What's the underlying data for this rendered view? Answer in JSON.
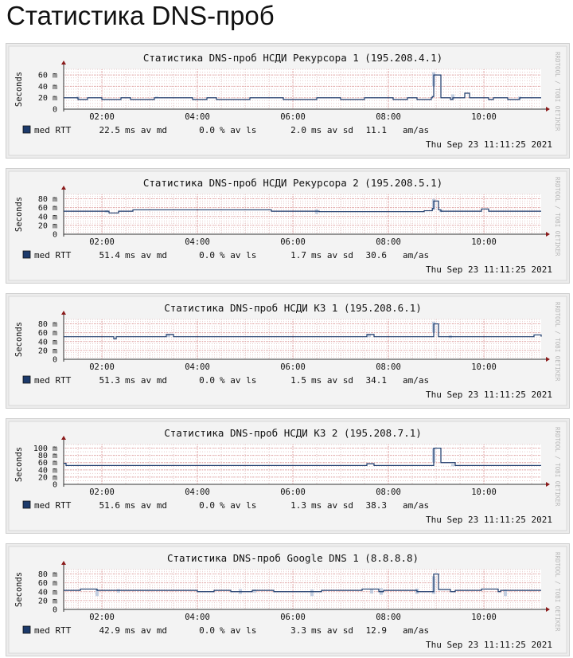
{
  "page": {
    "title": "Статистика DNS-проб"
  },
  "watermark": "RRDTOOL / TOBI OETIKER",
  "chart_data": [
    {
      "type": "line",
      "title": "Статистика DNS-проб НСДИ Рекурсора 1 (195.208.4.1)",
      "ylabel": "Seconds",
      "yticks": [
        "0",
        "20 m",
        "40 m",
        "60 m"
      ],
      "ytick_values": [
        0,
        20,
        40,
        60
      ],
      "ylim": [
        0,
        70
      ],
      "xticks": [
        "02:00",
        "04:00",
        "06:00",
        "08:00",
        "10:00"
      ],
      "xtick_hours": [
        2,
        4,
        6,
        8,
        10
      ],
      "xlim": [
        1.2,
        11.2
      ],
      "grid": true,
      "series": [
        {
          "name": "med RTT",
          "color": "#1c3a6b",
          "x": [
            1.2,
            1.45,
            1.5,
            1.65,
            1.7,
            1.95,
            2.0,
            2.35,
            2.4,
            2.55,
            2.6,
            3.0,
            3.1,
            3.8,
            3.9,
            4.1,
            4.2,
            4.35,
            4.4,
            5.0,
            5.1,
            5.7,
            5.8,
            6.4,
            6.5,
            6.9,
            7.0,
            7.4,
            7.5,
            8.0,
            8.1,
            8.3,
            8.4,
            8.55,
            8.6,
            8.85,
            8.9,
            8.92,
            8.95,
            9.0,
            9.1,
            9.15,
            9.3,
            9.35,
            9.55,
            9.6,
            9.7,
            9.8,
            10.1,
            10.2,
            10.4,
            10.5,
            10.7,
            10.75,
            11.2
          ],
          "values": [
            20,
            20,
            17,
            17,
            20,
            20,
            17,
            17,
            20,
            20,
            17,
            17,
            20,
            20,
            17,
            17,
            20,
            20,
            17,
            17,
            20,
            20,
            17,
            17,
            20,
            20,
            17,
            17,
            20,
            20,
            17,
            17,
            20,
            20,
            17,
            17,
            20,
            22,
            60,
            60,
            20,
            20,
            17,
            20,
            20,
            28,
            20,
            20,
            17,
            20,
            20,
            17,
            17,
            20,
            20
          ]
        }
      ],
      "shading": [
        {
          "x": 1.5,
          "y0": 18,
          "y1": 22
        },
        {
          "x": 3.15,
          "y0": 19,
          "y1": 22
        },
        {
          "x": 8.95,
          "y0": 40,
          "y1": 65
        },
        {
          "x": 9.35,
          "y0": 17,
          "y1": 26
        },
        {
          "x": 10.75,
          "y0": 18,
          "y1": 22
        }
      ],
      "legend": {
        "label": "med RTT",
        "ms_av_md": "22.5",
        "ms_av_md_label": "ms av md",
        "pct_av_ls": "0.0",
        "pct_av_ls_label": "% av ls",
        "ms_av_sd": "2.0",
        "ms_av_sd_label": "ms av sd",
        "am_as": "11.1",
        "am_as_label": "am/as"
      },
      "timestamp": "Thu Sep 23 11:11:25 2021"
    },
    {
      "type": "line",
      "title": "Статистика DNS-проб НСДИ Рекурсора 2 (195.208.5.1)",
      "ylabel": "Seconds",
      "yticks": [
        "0",
        "20 m",
        "40 m",
        "60 m",
        "80 m"
      ],
      "ytick_values": [
        0,
        20,
        40,
        60,
        80
      ],
      "ylim": [
        0,
        90
      ],
      "xticks": [
        "02:00",
        "04:00",
        "06:00",
        "08:00",
        "10:00"
      ],
      "xtick_hours": [
        2,
        4,
        6,
        8,
        10
      ],
      "xlim": [
        1.2,
        11.2
      ],
      "grid": true,
      "series": [
        {
          "name": "med RTT",
          "color": "#1c3a6b",
          "x": [
            1.2,
            2.1,
            2.15,
            2.3,
            2.35,
            2.6,
            2.65,
            5.5,
            5.55,
            6.5,
            6.55,
            8.7,
            8.75,
            8.9,
            8.92,
            8.95,
            9.0,
            9.05,
            9.1,
            9.9,
            9.95,
            10.05,
            10.1,
            11.2
          ],
          "values": [
            52,
            52,
            48,
            48,
            52,
            52,
            55,
            55,
            52,
            52,
            51,
            51,
            53,
            53,
            58,
            75,
            75,
            55,
            52,
            52,
            57,
            57,
            52,
            52
          ]
        }
      ],
      "shading": [
        {
          "x": 2.1,
          "y0": 49,
          "y1": 54
        },
        {
          "x": 6.5,
          "y0": 46,
          "y1": 56
        },
        {
          "x": 8.95,
          "y0": 55,
          "y1": 80
        },
        {
          "x": 9.1,
          "y0": 50,
          "y1": 56
        }
      ],
      "legend": {
        "label": "med RTT",
        "ms_av_md": "51.4",
        "ms_av_md_label": "ms av md",
        "pct_av_ls": "0.0",
        "pct_av_ls_label": "% av ls",
        "ms_av_sd": "1.7",
        "ms_av_sd_label": "ms av sd",
        "am_as": "30.6",
        "am_as_label": "am/as"
      },
      "timestamp": "Thu Sep 23 11:11:25 2021"
    },
    {
      "type": "line",
      "title": "Статистика DNS-проб НСДИ КЗ 1 (195.208.6.1)",
      "ylabel": "Seconds",
      "yticks": [
        "0",
        "20 m",
        "40 m",
        "60 m",
        "80 m"
      ],
      "ytick_values": [
        0,
        20,
        40,
        60,
        80
      ],
      "ylim": [
        0,
        90
      ],
      "xticks": [
        "02:00",
        "04:00",
        "06:00",
        "08:00",
        "10:00"
      ],
      "xtick_hours": [
        2,
        4,
        6,
        8,
        10
      ],
      "xlim": [
        1.2,
        11.2
      ],
      "grid": true,
      "series": [
        {
          "name": "med RTT",
          "color": "#1c3a6b",
          "x": [
            1.2,
            2.2,
            2.25,
            2.3,
            3.3,
            3.35,
            3.45,
            3.5,
            7.5,
            7.55,
            7.65,
            7.7,
            8.9,
            8.95,
            9.0,
            9.05,
            9.1,
            11.0,
            11.05,
            11.2
          ],
          "values": [
            51,
            51,
            46,
            51,
            51,
            56,
            56,
            51,
            51,
            56,
            56,
            51,
            51,
            80,
            80,
            51,
            51,
            51,
            55,
            51
          ]
        }
      ],
      "shading": [
        {
          "x": 3.4,
          "y0": 50,
          "y1": 57
        },
        {
          "x": 7.6,
          "y0": 50,
          "y1": 57
        },
        {
          "x": 8.95,
          "y0": 60,
          "y1": 85
        },
        {
          "x": 9.3,
          "y0": 48,
          "y1": 54
        }
      ],
      "legend": {
        "label": "med RTT",
        "ms_av_md": "51.3",
        "ms_av_md_label": "ms av md",
        "pct_av_ls": "0.0",
        "pct_av_ls_label": "% av ls",
        "ms_av_sd": "1.5",
        "ms_av_sd_label": "ms av sd",
        "am_as": "34.1",
        "am_as_label": "am/as"
      },
      "timestamp": "Thu Sep 23 11:11:25 2021"
    },
    {
      "type": "line",
      "title": "Статистика DNS-проб НСДИ КЗ 2 (195.208.7.1)",
      "ylabel": "Seconds",
      "yticks": [
        "0",
        "20 m",
        "40 m",
        "60 m",
        "80 m",
        "100 m"
      ],
      "ytick_values": [
        0,
        20,
        40,
        60,
        80,
        100
      ],
      "ylim": [
        0,
        110
      ],
      "xticks": [
        "02:00",
        "04:00",
        "06:00",
        "08:00",
        "10:00"
      ],
      "xtick_hours": [
        2,
        4,
        6,
        8,
        10
      ],
      "xlim": [
        1.2,
        11.2
      ],
      "grid": true,
      "series": [
        {
          "name": "med RTT",
          "color": "#1c3a6b",
          "x": [
            1.2,
            1.25,
            1.3,
            7.5,
            7.55,
            7.65,
            7.7,
            8.9,
            8.95,
            9.05,
            9.1,
            9.35,
            9.4,
            11.2
          ],
          "values": [
            58,
            52,
            52,
            52,
            57,
            57,
            52,
            52,
            100,
            100,
            60,
            60,
            52,
            52
          ]
        }
      ],
      "shading": [
        {
          "x": 8.95,
          "y0": 60,
          "y1": 100
        },
        {
          "x": 9.35,
          "y0": 50,
          "y1": 56
        }
      ],
      "legend": {
        "label": "med RTT",
        "ms_av_md": "51.6",
        "ms_av_md_label": "ms av md",
        "pct_av_ls": "0.0",
        "pct_av_ls_label": "% av ls",
        "ms_av_sd": "1.3",
        "ms_av_sd_label": "ms av sd",
        "am_as": "38.3",
        "am_as_label": "am/as"
      },
      "timestamp": "Thu Sep 23 11:11:25 2021"
    },
    {
      "type": "line",
      "title": "Статистика DNS-проб Google DNS 1 (8.8.8.8)",
      "ylabel": "Seconds",
      "yticks": [
        "0",
        "20 m",
        "40 m",
        "60 m",
        "80 m"
      ],
      "ytick_values": [
        0,
        20,
        40,
        60,
        80
      ],
      "ylim": [
        0,
        90
      ],
      "xticks": [
        "02:00",
        "04:00",
        "06:00",
        "08:00",
        "10:00"
      ],
      "xtick_hours": [
        2,
        4,
        6,
        8,
        10
      ],
      "xlim": [
        1.2,
        11.2
      ],
      "grid": true,
      "series": [
        {
          "name": "med RTT",
          "color": "#1c3a6b",
          "x": [
            1.2,
            1.5,
            1.55,
            1.9,
            2.0,
            3.9,
            4.0,
            4.3,
            4.35,
            4.6,
            4.7,
            5.1,
            5.15,
            5.5,
            5.6,
            6.5,
            6.6,
            7.4,
            7.45,
            7.8,
            7.9,
            8.5,
            8.6,
            8.9,
            8.95,
            9.0,
            9.05,
            9.3,
            9.4,
            9.9,
            9.95,
            10.3,
            10.35,
            11.2
          ],
          "values": [
            43,
            43,
            46,
            43,
            43,
            43,
            40,
            40,
            43,
            43,
            40,
            40,
            43,
            43,
            40,
            40,
            43,
            43,
            46,
            40,
            43,
            43,
            40,
            40,
            80,
            80,
            45,
            40,
            43,
            43,
            46,
            40,
            43,
            43
          ]
        }
      ],
      "shading": [
        {
          "x": 1.9,
          "y0": 30,
          "y1": 45
        },
        {
          "x": 2.35,
          "y0": 38,
          "y1": 46
        },
        {
          "x": 4.9,
          "y0": 35,
          "y1": 46
        },
        {
          "x": 5.2,
          "y0": 38,
          "y1": 45
        },
        {
          "x": 6.4,
          "y0": 30,
          "y1": 45
        },
        {
          "x": 7.65,
          "y0": 36,
          "y1": 46
        },
        {
          "x": 7.85,
          "y0": 33,
          "y1": 48
        },
        {
          "x": 8.6,
          "y0": 35,
          "y1": 47
        },
        {
          "x": 8.95,
          "y0": 35,
          "y1": 75
        },
        {
          "x": 10.45,
          "y0": 30,
          "y1": 45
        }
      ],
      "legend": {
        "label": "med RTT",
        "ms_av_md": "42.9",
        "ms_av_md_label": "ms av md",
        "pct_av_ls": "0.0",
        "pct_av_ls_label": "% av ls",
        "ms_av_sd": "3.3",
        "ms_av_sd_label": "ms av sd",
        "am_as": "12.9",
        "am_as_label": "am/as"
      },
      "timestamp": "Thu Sep 23 11:11:25 2021"
    }
  ]
}
